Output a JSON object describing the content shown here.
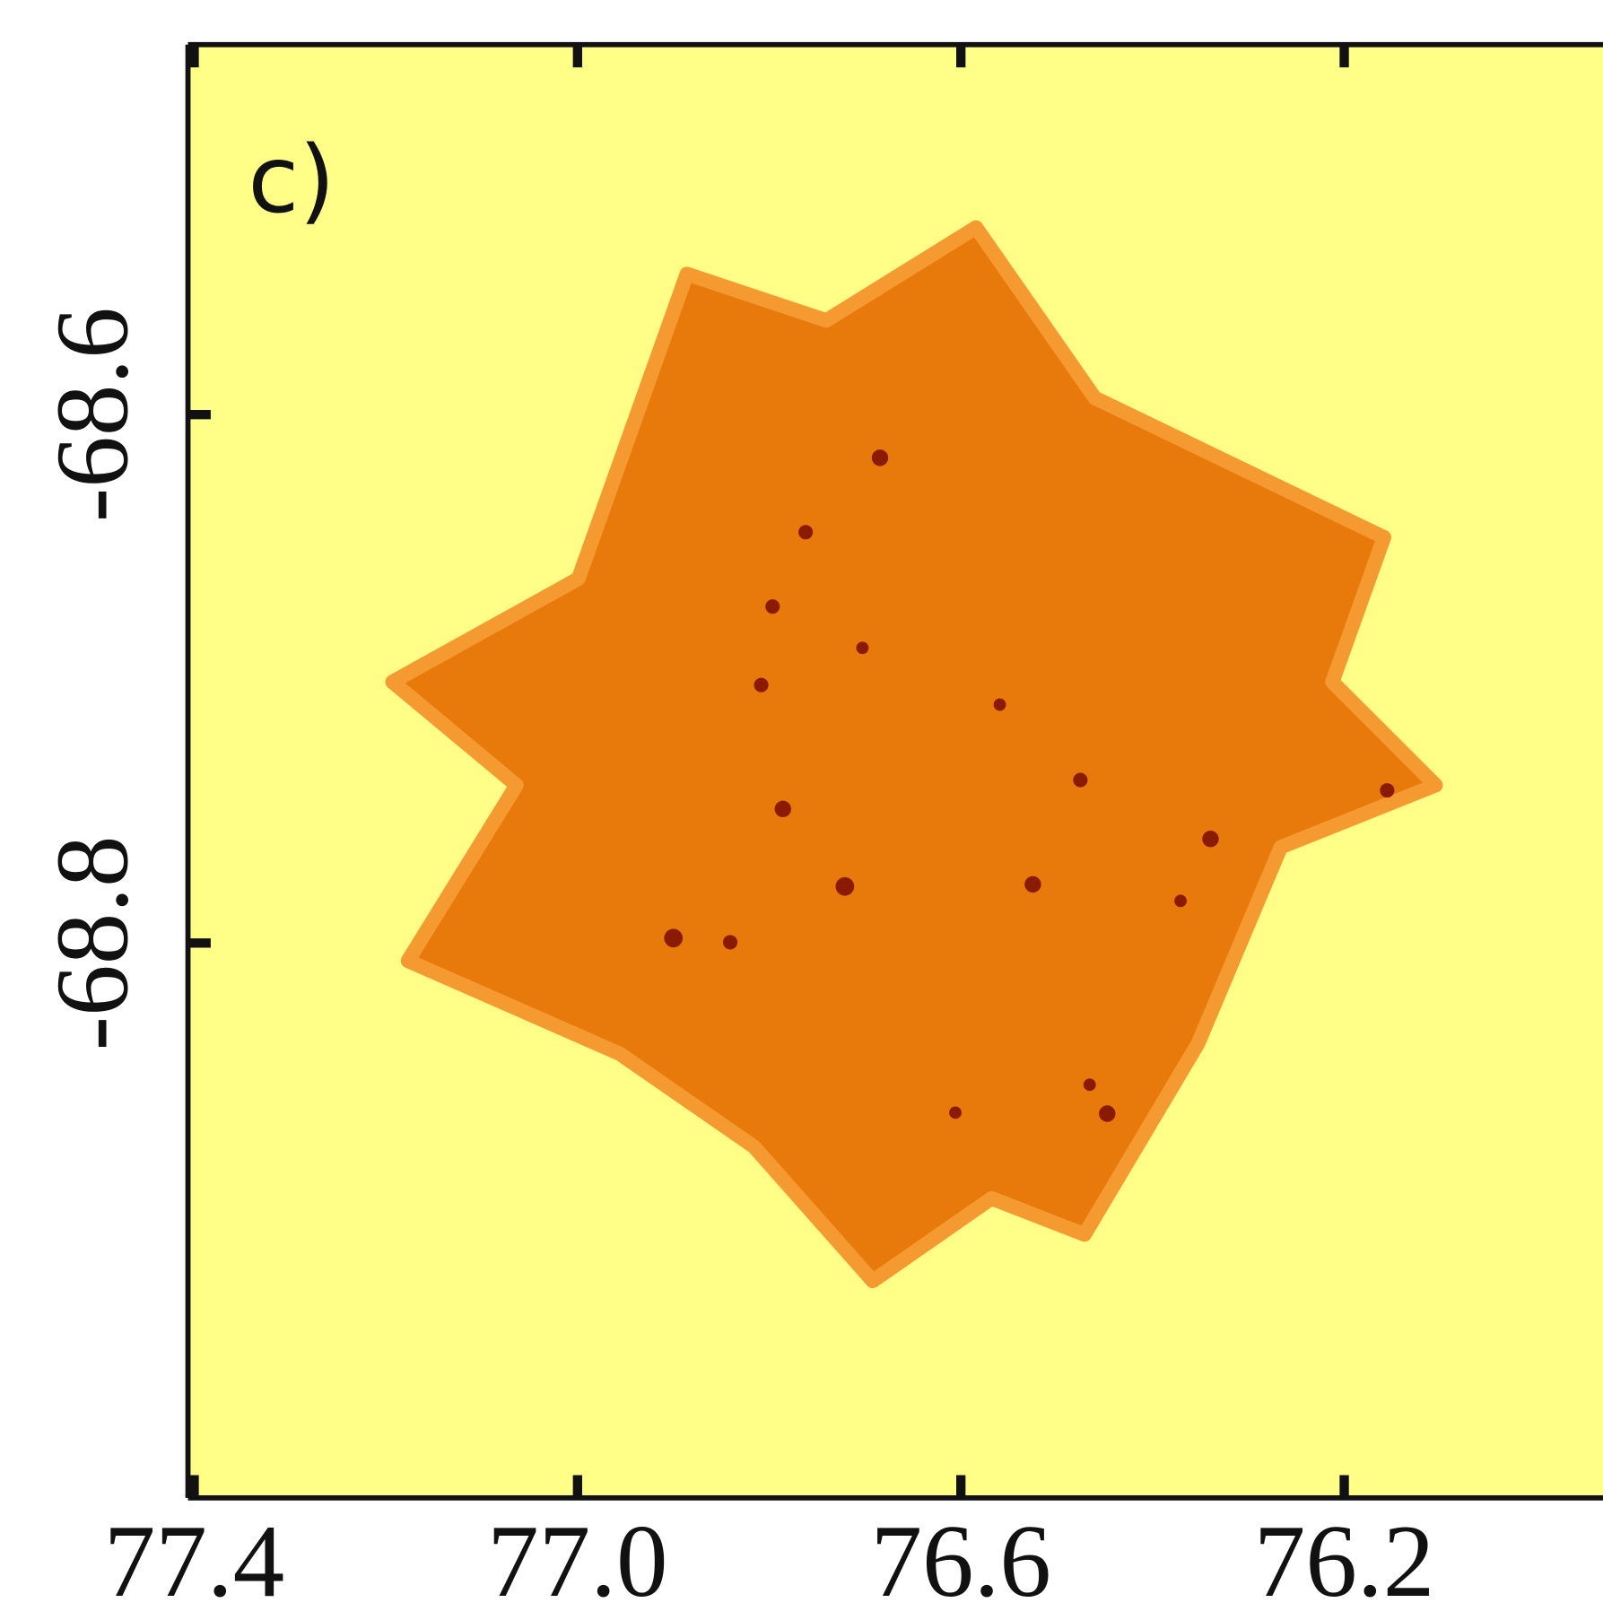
{
  "chart_data": {
    "type": "image",
    "annotation": "c)",
    "xlim": [
      77.4,
      75.93
    ],
    "xticks": [
      77.4,
      {
        "value": 77,
        "label": "77.0"
      },
      76.6,
      76.2
    ],
    "ylim": [
      -69.01,
      -68.46
    ],
    "yticks": [
      -68.6,
      -68.8
    ]
  }
}
